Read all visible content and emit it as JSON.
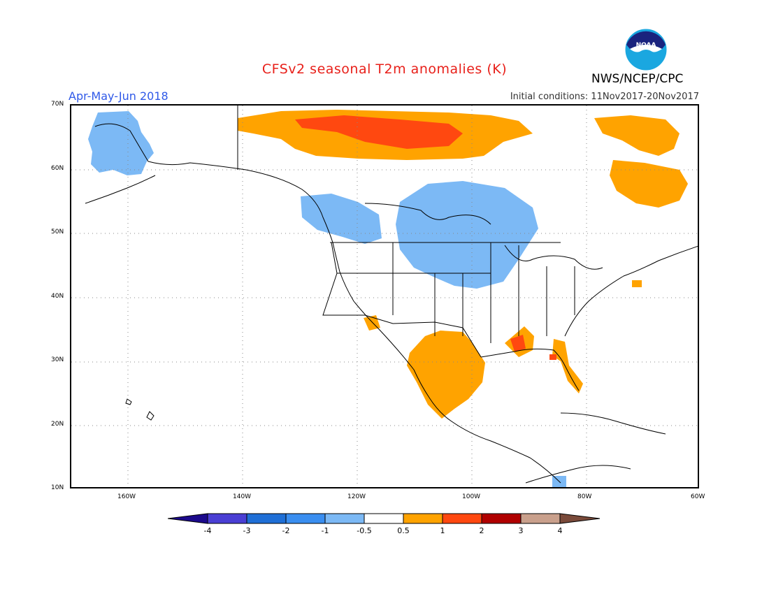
{
  "header": {
    "title": "CFSv2 seasonal T2m anomalies (K)",
    "season": "Apr-May-Jun 2018",
    "initial_conditions": "Initial conditions: 11Nov2017-20Nov2017",
    "organization": "NWS/NCEP/CPC",
    "logo_text": "NOAA"
  },
  "map": {
    "lon_labels": [
      "160W",
      "140W",
      "120W",
      "100W",
      "80W",
      "60W"
    ],
    "lat_labels": [
      "70N",
      "60N",
      "50N",
      "40N",
      "30N",
      "20N",
      "10N"
    ],
    "anomalies": [
      {
        "region": "Alaska",
        "category": "-1 to -0.5"
      },
      {
        "region": "Northern Canada (Arctic)",
        "category": "0.5 to 1"
      },
      {
        "region": "Northern Canada core",
        "category": "1 to 2"
      },
      {
        "region": "Quebec / Labrador",
        "category": "0.5 to 1"
      },
      {
        "region": "Pacific Northwest / BC",
        "category": "-1 to -0.5"
      },
      {
        "region": "Northern Plains / Prairies",
        "category": "-1 to -0.5"
      },
      {
        "region": "Southwest US / Mexico",
        "category": "0.5 to 1"
      },
      {
        "region": "Gulf Coast / Florida",
        "category": "0.5 to 1"
      },
      {
        "region": "Louisiana core",
        "category": "1 to 2"
      }
    ]
  },
  "colorbar": {
    "labels": [
      "-4",
      "-3",
      "-2",
      "-1",
      "-0.5",
      "0.5",
      "1",
      "2",
      "3",
      "4"
    ],
    "colors": [
      "#1c0a8c",
      "#4a3fd4",
      "#1f6fd6",
      "#3a8ef0",
      "#7cb9f5",
      "#ffffff",
      "#ffa300",
      "#ff4810",
      "#b00000",
      "#c9a08c",
      "#7a4a3a"
    ]
  }
}
